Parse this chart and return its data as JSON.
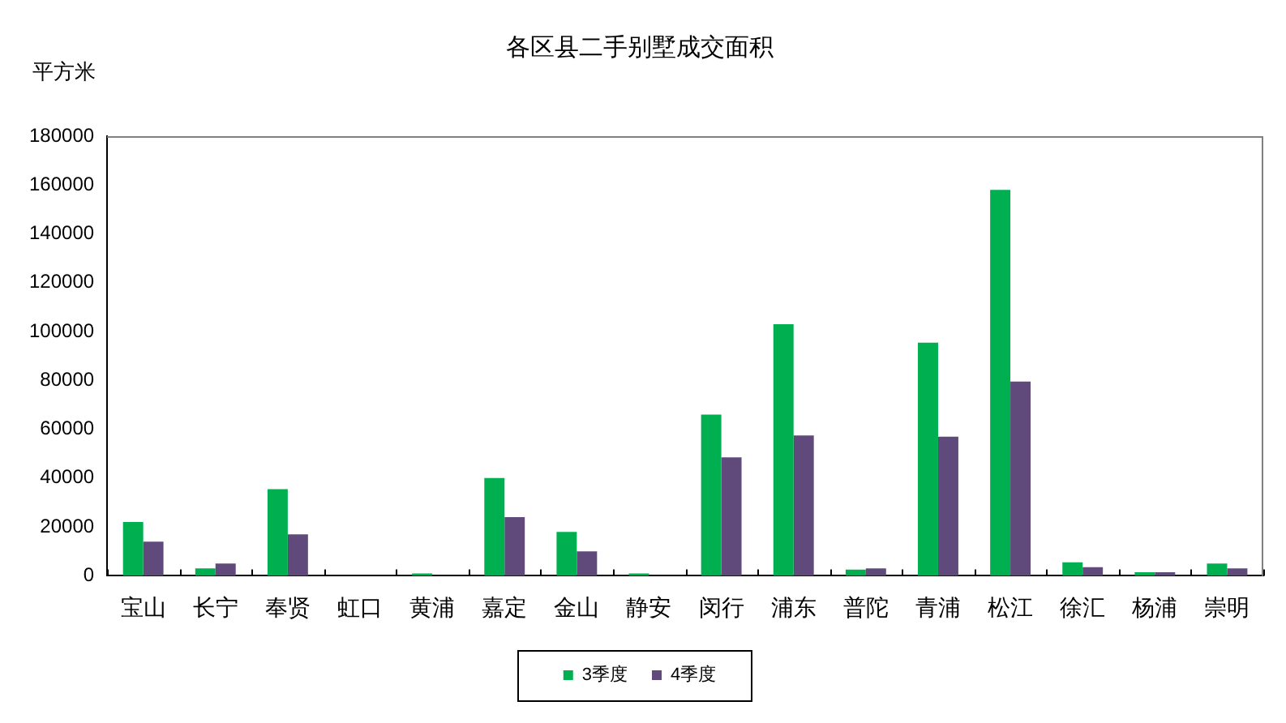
{
  "chart_data": {
    "type": "bar",
    "title": "各区县二手别墅成交面积",
    "ylabel": "平方米",
    "categories": [
      "宝山",
      "长宁",
      "奉贤",
      "虹口",
      "黄浦",
      "嘉定",
      "金山",
      "静安",
      "闵行",
      "浦东",
      "普陀",
      "青浦",
      "松江",
      "徐汇",
      "杨浦",
      "崇明"
    ],
    "series": [
      {
        "name": "3季度",
        "color": "#00b050",
        "values": [
          22000,
          3000,
          35500,
          0,
          1000,
          40000,
          18000,
          1000,
          66000,
          103000,
          2500,
          95500,
          158000,
          5500,
          1500,
          5000
        ]
      },
      {
        "name": "4季度",
        "color": "#604a7b",
        "values": [
          14000,
          5000,
          17000,
          0,
          0,
          24000,
          10000,
          0,
          48500,
          57500,
          3000,
          57000,
          79500,
          3500,
          1500,
          3000
        ]
      }
    ],
    "ylim": [
      0,
      180000
    ],
    "yticks": [
      0,
      20000,
      40000,
      60000,
      80000,
      100000,
      120000,
      140000,
      160000,
      180000
    ],
    "grid": false,
    "legend": "bottom"
  }
}
